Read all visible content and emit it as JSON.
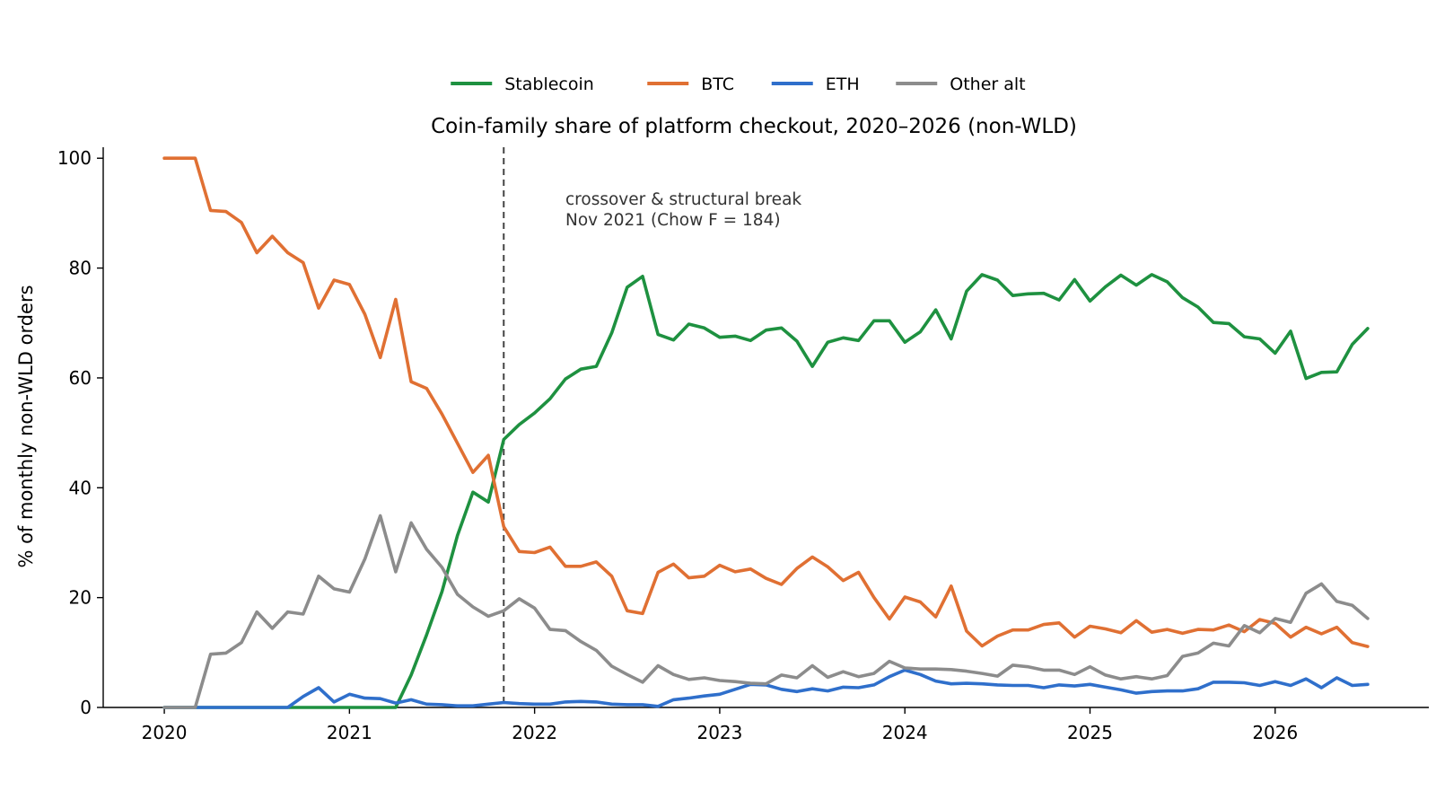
{
  "chart_data": {
    "type": "line",
    "title": "Coin-family share of platform checkout, 2020–2026 (non-WLD)",
    "xlabel": "",
    "ylabel": "% of monthly non-WLD orders",
    "x_start": "2020-01",
    "x_end": "2026-07",
    "xlim": [
      2019.67,
      2026.83
    ],
    "ylim": [
      0,
      102
    ],
    "x_ticks": [
      "2020",
      "2021",
      "2022",
      "2023",
      "2024",
      "2025",
      "2026"
    ],
    "y_ticks": [
      "0",
      "20",
      "40",
      "60",
      "80",
      "100"
    ],
    "grid": false,
    "legend_position": "top-center",
    "annotation": {
      "x": "2021-11",
      "line1": "crossover & structural break",
      "line2": "Nov 2021 (Chow F = 184)"
    },
    "series": [
      {
        "name": "Stablecoin",
        "color": "#1e9140",
        "values": [
          0,
          0,
          0,
          0,
          0,
          0,
          0,
          0,
          0,
          0,
          0,
          0,
          0,
          0,
          0,
          0,
          5.9,
          13.2,
          21.1,
          31.3,
          39.2,
          37.4,
          48.8,
          51.5,
          53.6,
          56.2,
          59.8,
          61.6,
          62.1,
          68.2,
          76.5,
          78.5,
          67.9,
          66.9,
          69.8,
          69.1,
          67.4,
          67.6,
          66.8,
          68.7,
          69.1,
          66.7,
          62.1,
          66.5,
          67.3,
          66.8,
          70.4,
          70.4,
          66.5,
          68.4,
          72.4,
          67.1,
          75.8,
          78.8,
          77.8,
          75.0,
          75.3,
          75.4,
          74.2,
          77.9,
          74.0,
          76.6,
          78.7,
          76.9,
          78.8,
          77.5,
          74.6,
          72.9,
          70.1,
          69.9,
          67.5,
          67.1,
          64.5,
          68.5,
          59.9,
          61.0,
          61.1,
          66.1,
          69.0
        ]
      },
      {
        "name": "BTC",
        "color": "#e07033",
        "values": [
          100,
          100,
          100,
          90.5,
          90.3,
          88.3,
          82.8,
          85.8,
          82.8,
          81.0,
          72.7,
          77.8,
          77.0,
          71.6,
          63.7,
          74.3,
          59.3,
          58.1,
          53.4,
          48.1,
          42.8,
          45.9,
          32.9,
          28.4,
          28.2,
          29.2,
          25.7,
          25.7,
          26.5,
          23.9,
          17.6,
          17.1,
          24.6,
          26.1,
          23.6,
          23.9,
          25.9,
          24.7,
          25.2,
          23.5,
          22.4,
          25.3,
          27.4,
          25.6,
          23.1,
          24.6,
          20.0,
          16.1,
          20.1,
          19.2,
          16.5,
          22.1,
          13.9,
          11.2,
          13.0,
          14.1,
          14.1,
          15.1,
          15.4,
          12.8,
          14.8,
          14.3,
          13.6,
          15.8,
          13.7,
          14.2,
          13.5,
          14.2,
          14.1,
          15.0,
          13.8,
          16.0,
          15.3,
          12.8,
          14.6,
          13.4,
          14.6,
          11.8,
          11.1
        ]
      },
      {
        "name": "ETH",
        "color": "#2f6fcb",
        "values": [
          0,
          0,
          0,
          0,
          0,
          0,
          0,
          0,
          0,
          2.0,
          3.6,
          1.0,
          2.4,
          1.7,
          1.6,
          0.8,
          1.4,
          0.6,
          0.5,
          0.3,
          0.3,
          0.6,
          0.9,
          0.7,
          0.6,
          0.6,
          1.0,
          1.1,
          1.0,
          0.6,
          0.5,
          0.5,
          0.2,
          1.4,
          1.7,
          2.1,
          2.4,
          3.3,
          4.2,
          4.1,
          3.3,
          2.9,
          3.4,
          3.0,
          3.7,
          3.6,
          4.1,
          5.6,
          6.8,
          6.0,
          4.8,
          4.3,
          4.4,
          4.3,
          4.1,
          4.0,
          4.0,
          3.6,
          4.1,
          3.9,
          4.2,
          3.7,
          3.2,
          2.6,
          2.9,
          3.0,
          3.0,
          3.4,
          4.6,
          4.6,
          4.5,
          4.0,
          4.7,
          4.0,
          5.2,
          3.6,
          5.4,
          4.0,
          4.2
        ]
      },
      {
        "name": "Other alt",
        "color": "#8c8c8c",
        "values": [
          0,
          0,
          0,
          9.7,
          9.9,
          11.8,
          17.4,
          14.4,
          17.4,
          17.0,
          23.9,
          21.6,
          21.0,
          27.0,
          34.9,
          24.7,
          33.6,
          28.8,
          25.5,
          20.6,
          18.3,
          16.6,
          17.6,
          19.8,
          18.1,
          14.2,
          14.0,
          12.0,
          10.4,
          7.5,
          6.0,
          4.6,
          7.6,
          6.0,
          5.1,
          5.4,
          4.9,
          4.7,
          4.4,
          4.3,
          5.9,
          5.4,
          7.6,
          5.5,
          6.5,
          5.6,
          6.2,
          8.4,
          7.2,
          7.0,
          7.0,
          6.9,
          6.6,
          6.2,
          5.7,
          7.7,
          7.4,
          6.8,
          6.8,
          6.0,
          7.4,
          5.9,
          5.2,
          5.6,
          5.2,
          5.8,
          9.3,
          9.9,
          11.7,
          11.2,
          14.9,
          13.6,
          16.2,
          15.5,
          20.8,
          22.5,
          19.3,
          18.6,
          16.2
        ]
      }
    ]
  }
}
